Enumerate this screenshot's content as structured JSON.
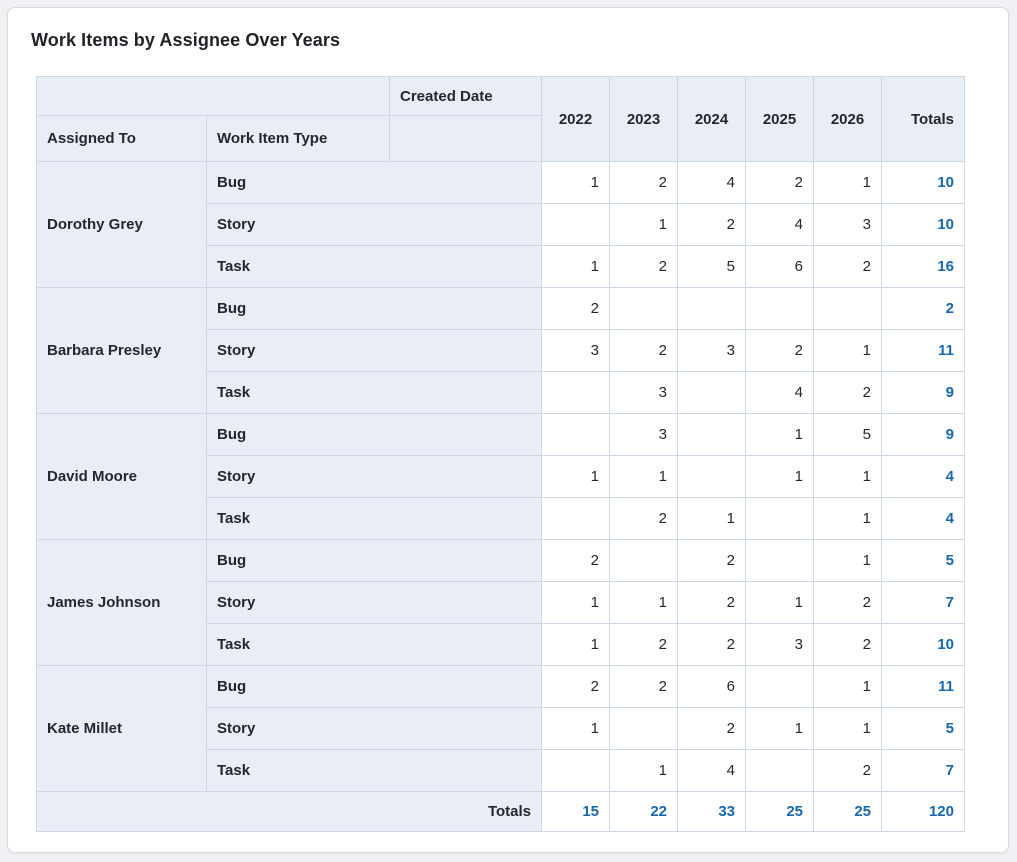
{
  "title": "Work Items by Assignee Over Years",
  "table_labels": {
    "created_date": "Created Date",
    "assigned_to": "Assigned To",
    "work_item_type": "Work Item Type",
    "totals_header": "Totals",
    "totals_row": "Totals"
  },
  "colors": {
    "value_blue": "#2e7dbe",
    "total_blue": "#1667ad",
    "header_bg": "#e9edf6",
    "grid_border": "#cdd7e9",
    "card_bg": "#ffffff",
    "page_bg": "#f0f1f4",
    "text_dark": "#24282e"
  },
  "chart_data": {
    "type": "table",
    "title": "Work Items by Assignee Over Years",
    "row_dimension": "Assigned To",
    "sub_dimension": "Work Item Type",
    "column_dimension": "Created Date",
    "columns": [
      "2022",
      "2023",
      "2024",
      "2025",
      "2026"
    ],
    "groups": [
      {
        "assignee": "Dorothy Grey",
        "rows": [
          {
            "type": "Bug",
            "values": [
              1,
              2,
              4,
              2,
              1
            ],
            "total": 10
          },
          {
            "type": "Story",
            "values": [
              null,
              1,
              2,
              4,
              3
            ],
            "total": 10
          },
          {
            "type": "Task",
            "values": [
              1,
              2,
              5,
              6,
              2
            ],
            "total": 16
          }
        ]
      },
      {
        "assignee": "Barbara Presley",
        "rows": [
          {
            "type": "Bug",
            "values": [
              2,
              null,
              null,
              null,
              null
            ],
            "total": 2
          },
          {
            "type": "Story",
            "values": [
              3,
              2,
              3,
              2,
              1
            ],
            "total": 11
          },
          {
            "type": "Task",
            "values": [
              null,
              3,
              null,
              4,
              2
            ],
            "total": 9
          }
        ]
      },
      {
        "assignee": "David Moore",
        "rows": [
          {
            "type": "Bug",
            "values": [
              null,
              3,
              null,
              1,
              5
            ],
            "total": 9
          },
          {
            "type": "Story",
            "values": [
              1,
              1,
              null,
              1,
              1
            ],
            "total": 4
          },
          {
            "type": "Task",
            "values": [
              null,
              2,
              1,
              null,
              1
            ],
            "total": 4
          }
        ]
      },
      {
        "assignee": "James Johnson",
        "rows": [
          {
            "type": "Bug",
            "values": [
              2,
              null,
              2,
              null,
              1
            ],
            "total": 5
          },
          {
            "type": "Story",
            "values": [
              1,
              1,
              2,
              1,
              2
            ],
            "total": 7
          },
          {
            "type": "Task",
            "values": [
              1,
              2,
              2,
              3,
              2
            ],
            "total": 10
          }
        ]
      },
      {
        "assignee": "Kate Millet",
        "rows": [
          {
            "type": "Bug",
            "values": [
              2,
              2,
              6,
              null,
              1
            ],
            "total": 11
          },
          {
            "type": "Story",
            "values": [
              1,
              null,
              2,
              1,
              1
            ],
            "total": 5
          },
          {
            "type": "Task",
            "values": [
              null,
              1,
              4,
              null,
              2
            ],
            "total": 7
          }
        ]
      }
    ],
    "column_totals": [
      15,
      22,
      33,
      25,
      25
    ],
    "grand_total": 120
  }
}
